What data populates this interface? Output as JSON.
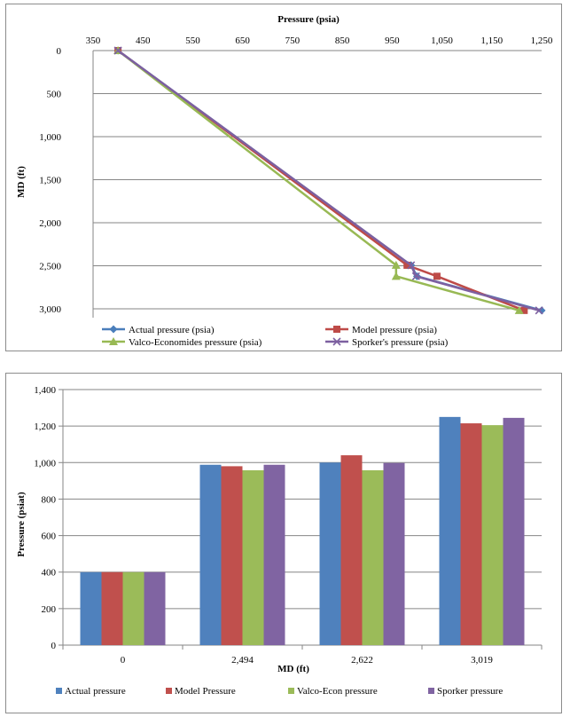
{
  "chart_data": [
    {
      "type": "line",
      "title": "",
      "xlabel": "Pressure (psia)",
      "ylabel": "MD (ft)",
      "xlim": [
        350,
        1250
      ],
      "ylim": [
        0,
        3000
      ],
      "y_inverted": true,
      "x_axis_position": "top",
      "x_ticks": [
        "350",
        "450",
        "550",
        "650",
        "750",
        "850",
        "950",
        "1,050",
        "1,150",
        "1,250"
      ],
      "y_ticks": [
        "0",
        "500",
        "1,000",
        "1,500",
        "2,000",
        "2,500",
        "3,000"
      ],
      "grid": "horizontal",
      "legend_position": "bottom",
      "series": [
        {
          "name": "Actual pressure (psia)",
          "color": "#4a7ebb",
          "marker": "diamond",
          "points": [
            [
              400,
              0
            ],
            [
              988,
              2494
            ],
            [
              1000,
              2622
            ],
            [
              1250,
              3019
            ]
          ]
        },
        {
          "name": "Model pressure (psia)",
          "color": "#be4b48",
          "marker": "square",
          "points": [
            [
              400,
              0
            ],
            [
              980,
              2494
            ],
            [
              1040,
              2622
            ],
            [
              1215,
              3019
            ]
          ]
        },
        {
          "name": "Valco-Economides pressure (psia)",
          "color": "#98b954",
          "marker": "triangle",
          "points": [
            [
              400,
              0
            ],
            [
              958,
              2494
            ],
            [
              958,
              2622
            ],
            [
              1205,
              3019
            ]
          ]
        },
        {
          "name": "Sporker's pressure (psia)",
          "color": "#7d60a0",
          "marker": "x",
          "points": [
            [
              400,
              0
            ],
            [
              988,
              2494
            ],
            [
              998,
              2622
            ],
            [
              1245,
              3019
            ]
          ]
        }
      ]
    },
    {
      "type": "bar",
      "title": "",
      "xlabel": "MD (ft)",
      "ylabel": "Pressure (psiat)",
      "ylim": [
        0,
        1400
      ],
      "y_ticks": [
        "0",
        "200",
        "400",
        "600",
        "800",
        "1,000",
        "1,200",
        "1,400"
      ],
      "categories": [
        "0",
        "2,494",
        "2,622",
        "3,019"
      ],
      "grid": "horizontal",
      "legend_position": "bottom",
      "series": [
        {
          "name": "Actual pressure",
          "color": "#4f81bd",
          "values": [
            400,
            988,
            1000,
            1250
          ]
        },
        {
          "name": "Model Pressure",
          "color": "#c0504d",
          "values": [
            400,
            980,
            1040,
            1215
          ]
        },
        {
          "name": "Valco-Econ pressure",
          "color": "#9bbb59",
          "values": [
            400,
            958,
            958,
            1205
          ]
        },
        {
          "name": "Sporker pressure",
          "color": "#8064a2",
          "values": [
            400,
            988,
            998,
            1245
          ]
        }
      ]
    }
  ]
}
